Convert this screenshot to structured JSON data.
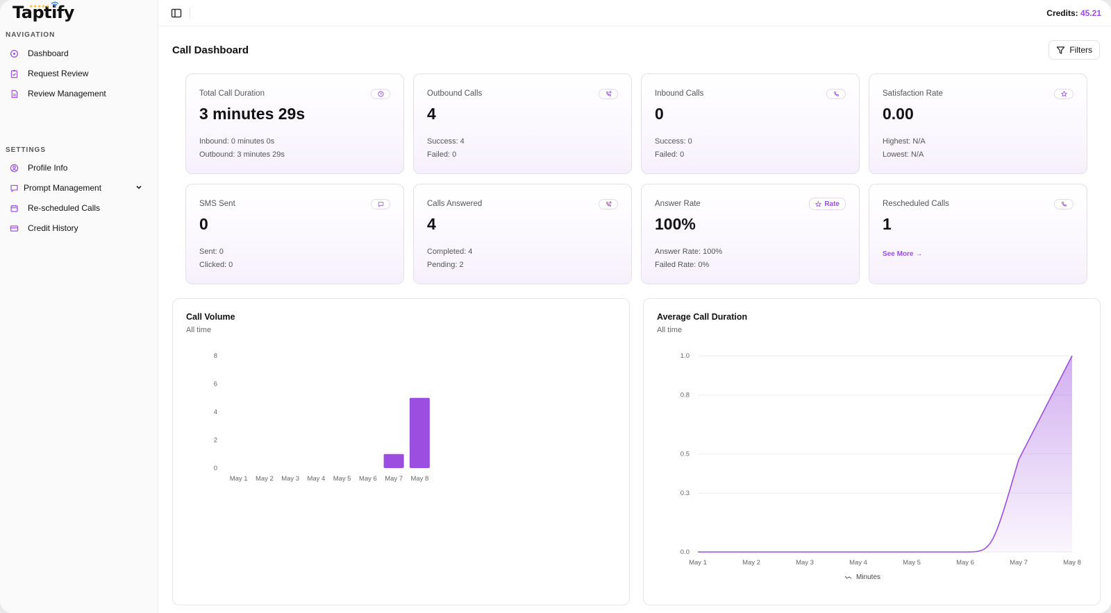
{
  "app": {
    "name": "Taptify",
    "stars": "★★★★★"
  },
  "sidebar": {
    "navigation_label": "NAVIGATION",
    "navigation": [
      {
        "label": "Dashboard",
        "icon": "dashboard-icon"
      },
      {
        "label": "Request Review",
        "icon": "clipboard-icon"
      },
      {
        "label": "Review Management",
        "icon": "document-icon"
      }
    ],
    "settings_label": "SETTINGS",
    "settings": [
      {
        "label": "Profile Info",
        "icon": "user-circle-icon"
      },
      {
        "label": "Prompt Management",
        "icon": "message-icon"
      },
      {
        "label": "Re-scheduled Calls",
        "icon": "calendar-icon"
      },
      {
        "label": "Credit History",
        "icon": "credit-card-icon"
      }
    ]
  },
  "topbar": {
    "credits_label": "Credits:",
    "credits_value": "45.21"
  },
  "main": {
    "title": "Call Dashboard",
    "filters_label": "Filters",
    "cards": [
      {
        "title": "Total Call Duration",
        "value": "3 minutes 29s",
        "line1": "Inbound: 0 minutes 0s",
        "line2": "Outbound: 3 minutes 29s",
        "icon": "clock-icon"
      },
      {
        "title": "Outbound Calls",
        "value": "4",
        "line1": "Success: 4",
        "line2": "Failed: 0",
        "icon": "phone-outgoing-icon"
      },
      {
        "title": "Inbound Calls",
        "value": "0",
        "line1": "Success: 0",
        "line2": "Failed: 0",
        "icon": "phone-icon"
      },
      {
        "title": "Satisfaction Rate",
        "value": "0.00",
        "line1": "Highest: N/A",
        "line2": "Lowest: N/A",
        "icon": "star-icon"
      },
      {
        "title": "SMS Sent",
        "value": "0",
        "line1": "Sent: 0",
        "line2": "Clicked: 0",
        "icon": "chat-icon"
      },
      {
        "title": "Calls Answered",
        "value": "4",
        "line1": "Completed: 4",
        "line2": "Pending: 2",
        "icon": "phone-outgoing-icon"
      },
      {
        "title": "Answer Rate",
        "value": "100%",
        "line1": "Answer Rate: 100%",
        "line2": "Failed Rate: 0%",
        "icon": "star-icon",
        "badge": "Rate"
      },
      {
        "title": "Rescheduled Calls",
        "value": "1",
        "link": "See More →",
        "icon": "phone-icon"
      }
    ]
  },
  "chart_data": [
    {
      "type": "bar",
      "title": "Call Volume",
      "subtitle": "All time",
      "categories": [
        "May 1",
        "May 2",
        "May 3",
        "May 4",
        "May 5",
        "May 6",
        "May 7",
        "May 8"
      ],
      "values": [
        0,
        0,
        0,
        0,
        0,
        0,
        1,
        5
      ],
      "yticks": [
        "0",
        "2",
        "4",
        "6",
        "8"
      ],
      "ylim": [
        0,
        8
      ],
      "color": "#9b4ee0"
    },
    {
      "type": "area",
      "title": "Average Call Duration",
      "subtitle": "All time",
      "categories": [
        "May 1",
        "May 2",
        "May 3",
        "May 4",
        "May 5",
        "May 6",
        "May 7",
        "May 8"
      ],
      "series": [
        {
          "name": "Minutes",
          "values": [
            0,
            0,
            0,
            0,
            0,
            0,
            0.47,
            1.0
          ]
        }
      ],
      "yticks": [
        "0.0",
        "0.3",
        "0.5",
        "0.8",
        "1.0"
      ],
      "ylim": [
        0,
        1
      ],
      "grid": true,
      "legend": "bottom",
      "color": "#9b4ee0"
    }
  ]
}
